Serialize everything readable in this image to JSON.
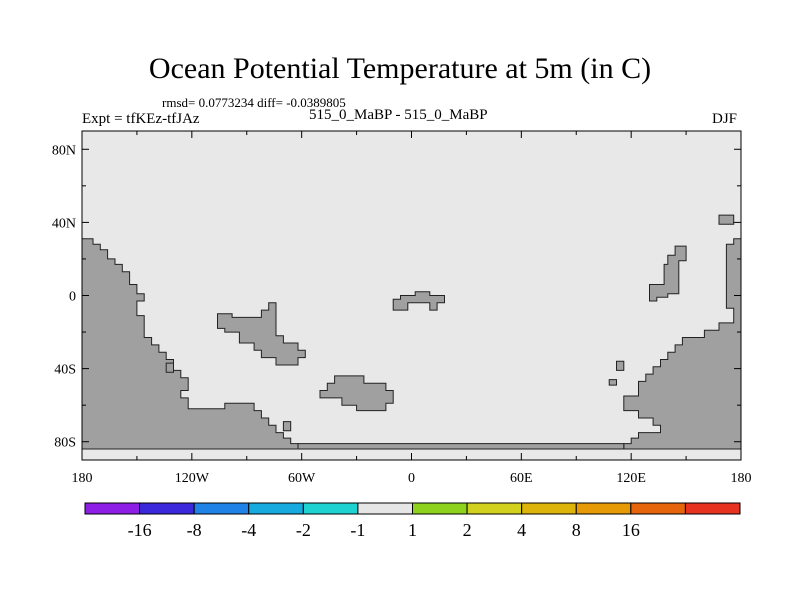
{
  "header": {
    "title": "Ocean Potential Temperature at 5m (in C)",
    "stats": "rmsd= 0.0773234 diff= -0.0389805",
    "experiment": "Expt = tfKEz-tfJAz",
    "case": "515_0_MaBP - 515_0_MaBP",
    "season": "DJF"
  },
  "map": {
    "ocean_color": "#e8e8e8",
    "land_color": "#a0a0a0",
    "lon_range": [
      -180,
      180
    ],
    "lat_range": [
      -90,
      90
    ],
    "lat_ticks": [
      {
        "value": 80,
        "label": "80N"
      },
      {
        "value": 40,
        "label": "40N"
      },
      {
        "value": 0,
        "label": "0"
      },
      {
        "value": -40,
        "label": "40S"
      },
      {
        "value": -80,
        "label": "80S"
      }
    ],
    "lon_ticks": [
      {
        "value": -180,
        "label": "180"
      },
      {
        "value": -120,
        "label": "120W"
      },
      {
        "value": -60,
        "label": "60W"
      },
      {
        "value": 0,
        "label": "0"
      },
      {
        "value": 60,
        "label": "60E"
      },
      {
        "value": 120,
        "label": "120E"
      },
      {
        "value": 180,
        "label": "180"
      }
    ],
    "land_regions": [
      {
        "name": "americas-landmass",
        "points": [
          [
            -180,
            31
          ],
          [
            -174,
            31
          ],
          [
            -174,
            28
          ],
          [
            -170,
            28
          ],
          [
            -170,
            25
          ],
          [
            -166,
            25
          ],
          [
            -166,
            20
          ],
          [
            -162,
            20
          ],
          [
            -162,
            17
          ],
          [
            -158,
            17
          ],
          [
            -158,
            13
          ],
          [
            -154,
            13
          ],
          [
            -154,
            6
          ],
          [
            -150,
            6
          ],
          [
            -150,
            1
          ],
          [
            -146,
            1
          ],
          [
            -146,
            -3
          ],
          [
            -150,
            -3
          ],
          [
            -150,
            -11
          ],
          [
            -146,
            -11
          ],
          [
            -146,
            -23
          ],
          [
            -142,
            -23
          ],
          [
            -142,
            -27
          ],
          [
            -138,
            -27
          ],
          [
            -138,
            -31
          ],
          [
            -134,
            -31
          ],
          [
            -134,
            -35
          ],
          [
            -130,
            -35
          ],
          [
            -130,
            -41
          ],
          [
            -126,
            -41
          ],
          [
            -126,
            -45
          ],
          [
            -122,
            -45
          ],
          [
            -122,
            -52
          ],
          [
            -126,
            -52
          ],
          [
            -126,
            -56
          ],
          [
            -122,
            -56
          ],
          [
            -122,
            -62
          ],
          [
            -102,
            -62
          ],
          [
            -102,
            -59
          ],
          [
            -86,
            -59
          ],
          [
            -86,
            -63
          ],
          [
            -82,
            -63
          ],
          [
            -82,
            -67
          ],
          [
            -78,
            -67
          ],
          [
            -78,
            -71
          ],
          [
            -74,
            -71
          ],
          [
            -74,
            -75
          ],
          [
            -70,
            -75
          ],
          [
            -70,
            -78
          ],
          [
            -66,
            -78
          ],
          [
            -66,
            -81
          ],
          [
            -62,
            -81
          ],
          [
            -62,
            -84
          ],
          [
            -180,
            -84
          ]
        ]
      },
      {
        "name": "east-landmass",
        "points": [
          [
            180,
            31
          ],
          [
            176,
            31
          ],
          [
            176,
            28
          ],
          [
            172,
            28
          ],
          [
            172,
            -7
          ],
          [
            176,
            -7
          ],
          [
            176,
            -15
          ],
          [
            168,
            -15
          ],
          [
            168,
            -19
          ],
          [
            160,
            -19
          ],
          [
            160,
            -23
          ],
          [
            148,
            -23
          ],
          [
            148,
            -27
          ],
          [
            144,
            -27
          ],
          [
            144,
            -31
          ],
          [
            140,
            -31
          ],
          [
            140,
            -35
          ],
          [
            136,
            -35
          ],
          [
            136,
            -39
          ],
          [
            132,
            -39
          ],
          [
            132,
            -43
          ],
          [
            128,
            -43
          ],
          [
            128,
            -47
          ],
          [
            124,
            -47
          ],
          [
            124,
            -55
          ],
          [
            116,
            -55
          ],
          [
            116,
            -63
          ],
          [
            124,
            -63
          ],
          [
            124,
            -67
          ],
          [
            132,
            -67
          ],
          [
            132,
            -71
          ],
          [
            136,
            -71
          ],
          [
            136,
            -75
          ],
          [
            124,
            -75
          ],
          [
            124,
            -78
          ],
          [
            120,
            -78
          ],
          [
            120,
            -81
          ],
          [
            116,
            -81
          ],
          [
            116,
            -84
          ],
          [
            180,
            -84
          ]
        ]
      },
      {
        "name": "antarctica-shelf",
        "points": [
          [
            -62,
            -84
          ],
          [
            -62,
            -81
          ],
          [
            116,
            -81
          ],
          [
            116,
            -84
          ]
        ]
      },
      {
        "name": "continent-block-west",
        "points": [
          [
            -106,
            -10
          ],
          [
            -98,
            -10
          ],
          [
            -98,
            -12
          ],
          [
            -82,
            -12
          ],
          [
            -82,
            -8
          ],
          [
            -78,
            -8
          ],
          [
            -78,
            -4
          ],
          [
            -74,
            -4
          ],
          [
            -74,
            -22
          ],
          [
            -70,
            -22
          ],
          [
            -70,
            -26
          ],
          [
            -62,
            -26
          ],
          [
            -62,
            -30
          ],
          [
            -58,
            -30
          ],
          [
            -58,
            -34
          ],
          [
            -62,
            -34
          ],
          [
            -62,
            -38
          ],
          [
            -74,
            -38
          ],
          [
            -74,
            -34
          ],
          [
            -82,
            -34
          ],
          [
            -82,
            -30
          ],
          [
            -86,
            -30
          ],
          [
            -86,
            -26
          ],
          [
            -94,
            -26
          ],
          [
            -94,
            -20
          ],
          [
            -102,
            -20
          ],
          [
            -102,
            -18
          ],
          [
            -106,
            -18
          ]
        ]
      },
      {
        "name": "continent-block-south",
        "points": [
          [
            -42,
            -44
          ],
          [
            -26,
            -44
          ],
          [
            -26,
            -48
          ],
          [
            -14,
            -48
          ],
          [
            -14,
            -52
          ],
          [
            -10,
            -52
          ],
          [
            -10,
            -59
          ],
          [
            -14,
            -59
          ],
          [
            -14,
            -63
          ],
          [
            -30,
            -63
          ],
          [
            -30,
            -60
          ],
          [
            -38,
            -60
          ],
          [
            -38,
            -56
          ],
          [
            -50,
            -56
          ],
          [
            -50,
            -52
          ],
          [
            -46,
            -52
          ],
          [
            -46,
            -48
          ],
          [
            -42,
            -48
          ]
        ]
      },
      {
        "name": "equatorial-island",
        "points": [
          [
            -10,
            -2
          ],
          [
            -6,
            -2
          ],
          [
            -6,
            0
          ],
          [
            2,
            0
          ],
          [
            2,
            2
          ],
          [
            10,
            2
          ],
          [
            10,
            0
          ],
          [
            18,
            0
          ],
          [
            18,
            -4
          ],
          [
            14,
            -4
          ],
          [
            14,
            -8
          ],
          [
            10,
            -8
          ],
          [
            10,
            -4
          ],
          [
            -2,
            -4
          ],
          [
            -2,
            -8
          ],
          [
            -10,
            -8
          ]
        ]
      },
      {
        "name": "north-island-small",
        "points": [
          [
            168,
            44
          ],
          [
            176,
            44
          ],
          [
            176,
            39
          ],
          [
            168,
            39
          ]
        ]
      },
      {
        "name": "west-pacific-island",
        "points": [
          [
            144,
            27
          ],
          [
            150,
            27
          ],
          [
            150,
            19
          ],
          [
            146,
            19
          ],
          [
            146,
            1
          ],
          [
            140,
            1
          ],
          [
            140,
            -1
          ],
          [
            134,
            -1
          ],
          [
            134,
            -3
          ],
          [
            130,
            -3
          ],
          [
            130,
            6
          ],
          [
            138,
            6
          ],
          [
            138,
            17
          ],
          [
            140,
            17
          ],
          [
            140,
            22
          ],
          [
            144,
            22
          ]
        ]
      },
      {
        "name": "islet-south-pacific",
        "points": [
          [
            -134,
            -37
          ],
          [
            -130,
            -37
          ],
          [
            -130,
            -42
          ],
          [
            -134,
            -42
          ]
        ]
      },
      {
        "name": "islet-drake",
        "points": [
          [
            -70,
            -69
          ],
          [
            -66,
            -69
          ],
          [
            -66,
            -74
          ],
          [
            -70,
            -74
          ]
        ]
      },
      {
        "name": "islet-indian-1",
        "points": [
          [
            112,
            -36
          ],
          [
            116,
            -36
          ],
          [
            116,
            -41
          ],
          [
            112,
            -41
          ]
        ]
      },
      {
        "name": "islet-indian-2",
        "points": [
          [
            108,
            -46
          ],
          [
            112,
            -46
          ],
          [
            112,
            -49
          ],
          [
            108,
            -49
          ]
        ]
      }
    ]
  },
  "colorbar": {
    "colors": [
      "#8c1ee6",
      "#3c28dc",
      "#1e82e6",
      "#16aade",
      "#1ed2d2",
      "#e6e6e6",
      "#8ed21e",
      "#d2d21e",
      "#dcb40a",
      "#e69a06",
      "#e6640a",
      "#e6321e"
    ],
    "labels": [
      "-16",
      "-8",
      "-4",
      "-2",
      "-1",
      "1",
      "2",
      "4",
      "8",
      "16"
    ]
  }
}
